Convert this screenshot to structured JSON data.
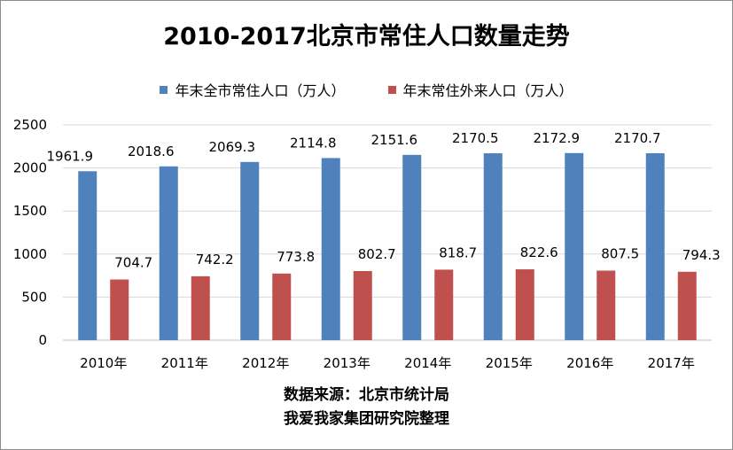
{
  "chart_data": {
    "type": "bar",
    "title": "2010-2017北京市常住人口数量走势",
    "categories": [
      "2010年",
      "2011年",
      "2012年",
      "2013年",
      "2014年",
      "2015年",
      "2016年",
      "2017年"
    ],
    "series": [
      {
        "name": "年末全市常住人口（万人）",
        "color": "#4f81bd",
        "values": [
          1961.9,
          2018.6,
          2069.3,
          2114.8,
          2151.6,
          2170.5,
          2172.9,
          2170.7
        ],
        "labels": [
          "1961.9",
          "2018.6",
          "2069.3",
          "2114.8",
          "2151.6",
          "2170.5",
          "2172.9",
          "2170.7"
        ]
      },
      {
        "name": "年末常住外来人口（万人）",
        "color": "#c0504d",
        "values": [
          704.7,
          742.2,
          773.8,
          802.7,
          818.7,
          822.6,
          807.5,
          794.3
        ],
        "labels": [
          "704.7",
          "742.2",
          "773.8",
          "802.7",
          "818.7",
          "822.6",
          "807.5",
          "794.3"
        ]
      }
    ],
    "ylim": [
      0,
      2500
    ],
    "yticks": [
      0,
      500,
      1000,
      1500,
      2000,
      2500
    ],
    "grid": true,
    "legend_position": "top"
  },
  "source": {
    "line1": "数据来源：北京市统计局",
    "line2": "我爱我家集团研究院整理"
  }
}
